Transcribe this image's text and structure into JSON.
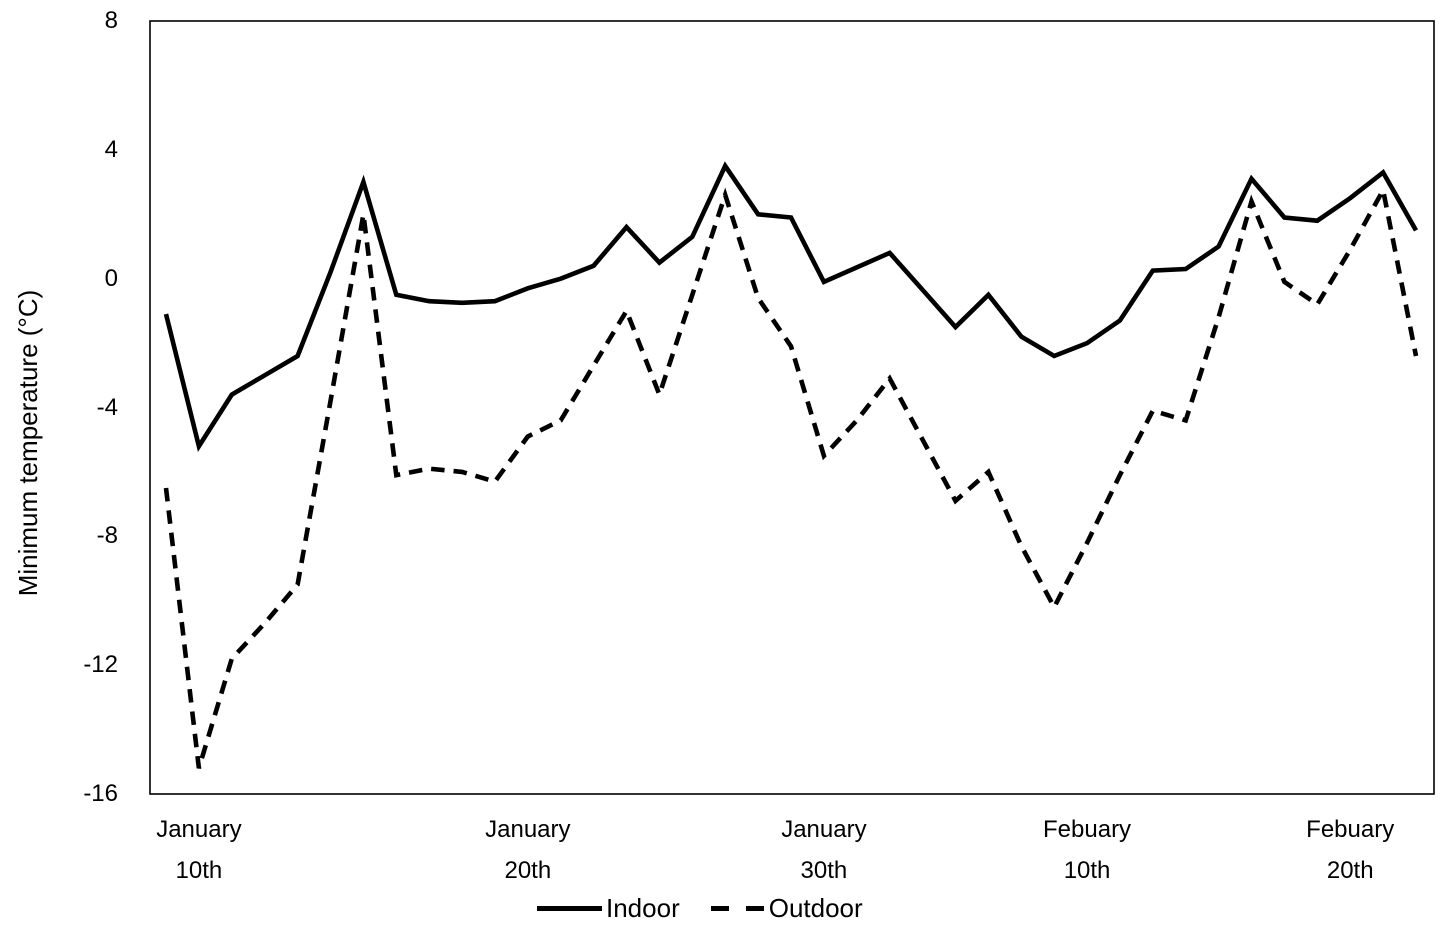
{
  "chart_data": {
    "type": "line",
    "title": "",
    "xlabel": "",
    "ylabel": "Minimum temperature (°C)",
    "ylim": [
      -16,
      8
    ],
    "yticks": [
      8,
      4,
      0,
      -4,
      -8,
      -12,
      -16
    ],
    "n_points": 39,
    "grid": false,
    "plot_border": true,
    "legend_position": "bottom-center",
    "line_color": "#000000",
    "background_color": "#ffffff",
    "x_labels": [
      {
        "month": "January",
        "day": "10th",
        "index": 1
      },
      {
        "month": "January",
        "day": "20th",
        "index": 11
      },
      {
        "month": "January",
        "day": "30th",
        "index": 20
      },
      {
        "month": "Febuary",
        "day": "10th",
        "index": 28
      },
      {
        "month": "Febuary",
        "day": "20th",
        "index": 36
      }
    ],
    "series": [
      {
        "name": "Indoor",
        "style": "solid",
        "color": "#000000",
        "values": [
          -1.1,
          -5.2,
          -3.6,
          -3.0,
          -2.4,
          0.2,
          3.0,
          -0.5,
          -0.7,
          -0.75,
          -0.7,
          -0.3,
          0.0,
          0.4,
          1.6,
          0.5,
          1.3,
          3.5,
          2.0,
          1.9,
          -0.1,
          0.35,
          0.8,
          -0.35,
          -1.5,
          -0.5,
          -1.8,
          -2.4,
          -2.0,
          -1.3,
          0.25,
          0.3,
          1.0,
          3.1,
          1.9,
          1.8,
          2.5,
          3.3,
          1.5
        ]
      },
      {
        "name": "Outdoor",
        "style": "dashed",
        "color": "#000000",
        "values": [
          -6.5,
          -15.2,
          -11.8,
          -10.7,
          -9.5,
          -3.8,
          2.0,
          -6.1,
          -5.9,
          -6.0,
          -6.3,
          -4.9,
          -4.4,
          -2.7,
          -1.0,
          -3.6,
          -0.5,
          2.6,
          -0.6,
          -2.1,
          -5.5,
          -4.4,
          -3.1,
          -5.0,
          -6.9,
          -6.0,
          -8.3,
          -10.2,
          -8.2,
          -6.1,
          -4.1,
          -4.4,
          -1.2,
          2.4,
          -0.1,
          -0.8,
          0.9,
          2.75,
          -2.4
        ]
      }
    ]
  }
}
